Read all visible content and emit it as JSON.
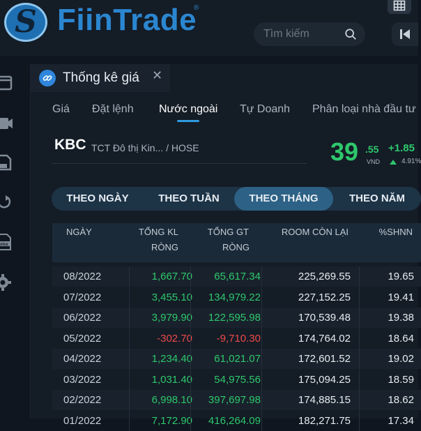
{
  "header": {
    "logo_emblem": "S",
    "logo_text": "FiinTrade",
    "logo_reg": "®",
    "search_placeholder": "Tìm kiếm",
    "icons": [
      "grid-icon",
      "search-icon",
      "skip-back-icon"
    ]
  },
  "rail": {
    "icons": [
      "window-icon",
      "video-icon",
      "save-icon",
      "refresh-icon",
      "xlsx-file-icon",
      "gear-icon"
    ]
  },
  "panel": {
    "title": "Thống kê giá",
    "close": "✕",
    "subtabs": [
      {
        "label": "Giá",
        "active": false
      },
      {
        "label": "Đặt lệnh",
        "active": false
      },
      {
        "label": "Nước ngoài",
        "active": true
      },
      {
        "label": "Tự Doanh",
        "active": false
      },
      {
        "label": "Phân loại nhà đầu tư",
        "active": false
      }
    ]
  },
  "stock": {
    "ticker": "KBC",
    "company": "TCT Đô thị Kin... / HOSE",
    "price": "39",
    "price_decimal": ".55",
    "currency": "VND",
    "change": "+1.85",
    "change_pct": "4.91%"
  },
  "periods": [
    {
      "label": "THEO NGÀY",
      "active": false
    },
    {
      "label": "THEO TUẦN",
      "active": false
    },
    {
      "label": "THEO THÁNG",
      "active": true
    },
    {
      "label": "THEO NĂM",
      "active": false
    }
  ],
  "table": {
    "headers": {
      "date": "NGÀY",
      "kl_line1": "TỔNG KL",
      "kl_line2": "RÒNG",
      "gt_line1": "TỔNG GT",
      "gt_line2": "RÒNG",
      "room": "ROOM CÒN LẠI",
      "shnn": "%SHNN"
    },
    "rows": [
      {
        "date": "08/2022",
        "kl": "1,667.70",
        "gt": "65,617.34",
        "room": "225,269.55",
        "shnn": "19.65",
        "sign": "pos"
      },
      {
        "date": "07/2022",
        "kl": "3,455.10",
        "gt": "134,979.22",
        "room": "227,152.25",
        "shnn": "19.41",
        "sign": "pos"
      },
      {
        "date": "06/2022",
        "kl": "3,979.90",
        "gt": "122,595.98",
        "room": "170,539.48",
        "shnn": "19.38",
        "sign": "pos"
      },
      {
        "date": "05/2022",
        "kl": "-302.70",
        "gt": "-9,710.30",
        "room": "174,764.02",
        "shnn": "18.64",
        "sign": "neg"
      },
      {
        "date": "04/2022",
        "kl": "1,234.40",
        "gt": "61,021.07",
        "room": "172,601.52",
        "shnn": "19.02",
        "sign": "pos"
      },
      {
        "date": "03/2022",
        "kl": "1,031.40",
        "gt": "54,975.56",
        "room": "175,094.25",
        "shnn": "18.59",
        "sign": "pos"
      },
      {
        "date": "02/2022",
        "kl": "6,998.10",
        "gt": "397,697.98",
        "room": "174,885.15",
        "shnn": "18.62",
        "sign": "pos"
      },
      {
        "date": "01/2022",
        "kl": "7,172.90",
        "gt": "416,264.09",
        "room": "182,271.75",
        "shnn": "17.34",
        "sign": "pos"
      }
    ]
  },
  "colors": {
    "accent": "#2f9be0",
    "positive": "#2ec86c",
    "negative": "#ef4a4a",
    "background": "#141c26"
  }
}
